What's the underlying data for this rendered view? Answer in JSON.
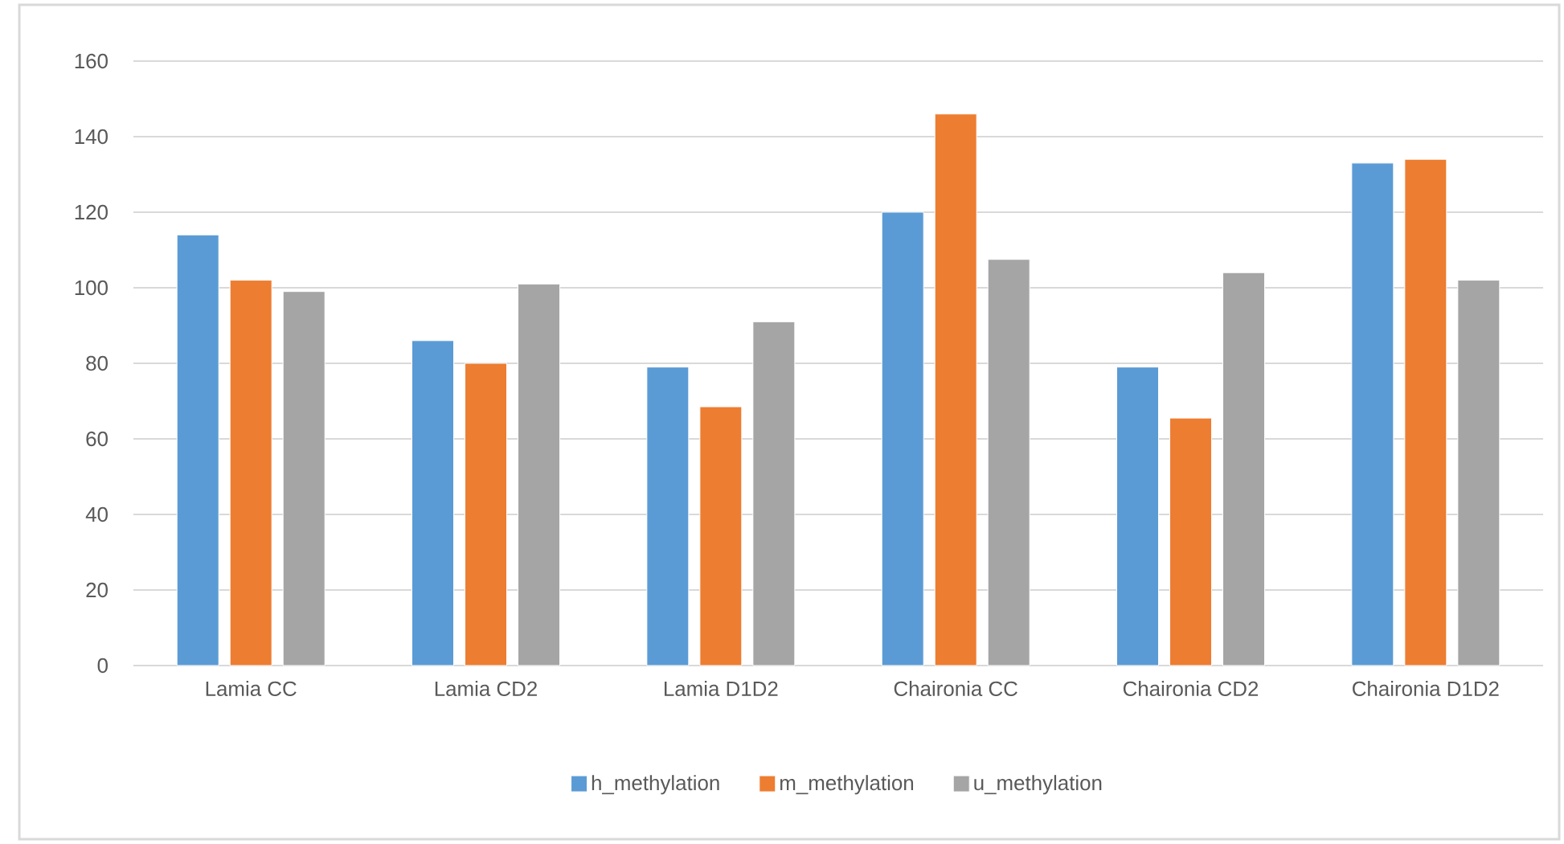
{
  "chart_data": {
    "type": "bar",
    "categories": [
      "Lamia CC",
      "Lamia CD2",
      "Lamia D1D2",
      "Chaironia CC",
      "Chaironia CD2",
      "Chaironia D1D2"
    ],
    "series": [
      {
        "name": "h_methylation",
        "color": "#5b9bd5",
        "values": [
          114,
          86,
          79,
          120,
          79,
          133
        ]
      },
      {
        "name": "m_methylation",
        "color": "#ed7d31",
        "values": [
          102,
          80,
          68.5,
          146,
          65.5,
          134
        ]
      },
      {
        "name": "u_methylation",
        "color": "#a5a5a5",
        "values": [
          99,
          101,
          91,
          107.5,
          104,
          102
        ]
      }
    ],
    "ylim": [
      0,
      160
    ],
    "yticks": [
      0,
      20,
      40,
      60,
      80,
      100,
      120,
      140,
      160
    ],
    "grid": "y",
    "legend": "bottom"
  }
}
